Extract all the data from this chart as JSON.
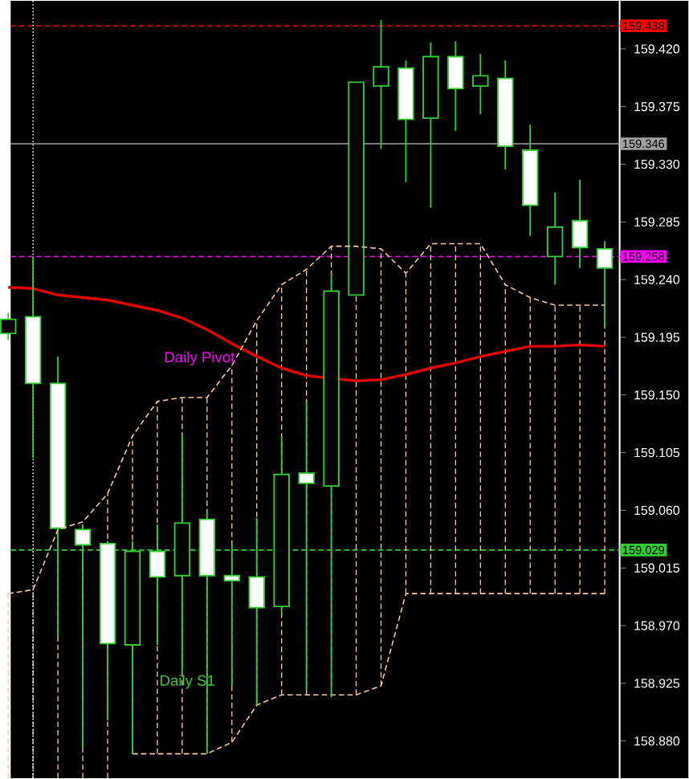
{
  "chart_data": {
    "type": "candlestick",
    "categories": [
      null,
      null,
      null,
      null,
      null,
      null,
      null,
      null,
      null,
      null,
      null,
      null,
      null,
      null,
      null,
      null,
      null,
      null,
      null,
      null,
      null,
      null,
      null,
      null,
      null
    ],
    "series": [
      {
        "type": "line",
        "color": "#f5c8a0",
        "line_style": "dashed",
        "values": [
          158.995,
          158.998,
          159.045,
          159.051,
          159.073,
          159.118,
          159.145,
          159.148,
          159.148,
          159.173,
          159.208,
          159.236,
          159.248,
          159.266,
          159.266,
          159.264,
          159.245,
          159.268,
          159.268,
          159.268,
          159.236,
          159.226,
          159.22,
          159.22,
          159.22
        ],
        "errors": [
          [
            158.851,
            158.995
          ],
          [
            158.851,
            158.998
          ],
          [
            158.851,
            159.045
          ],
          [
            158.851,
            159.051
          ],
          [
            158.851,
            159.073
          ],
          [
            158.87,
            159.118
          ],
          [
            158.87,
            159.145
          ],
          [
            158.87,
            159.148
          ],
          [
            158.87,
            159.148
          ],
          [
            158.879,
            159.173
          ],
          [
            158.908,
            159.208
          ],
          [
            158.916,
            159.236
          ],
          [
            158.916,
            159.248
          ],
          [
            158.916,
            159.266
          ],
          [
            158.916,
            159.266
          ],
          [
            158.923,
            159.264
          ],
          [
            158.995,
            159.245
          ],
          [
            158.995,
            159.268
          ],
          [
            158.995,
            159.268
          ],
          [
            158.995,
            159.268
          ],
          [
            158.995,
            159.236
          ],
          [
            158.995,
            159.226
          ],
          [
            158.995,
            159.22
          ],
          [
            158.995,
            159.22
          ],
          [
            158.995,
            159.22
          ]
        ]
      },
      {
        "type": "line",
        "color": "#f5c8a0",
        "line_style": "dashed",
        "values": [
          null,
          null,
          null,
          null,
          null,
          158.87,
          158.87,
          158.87,
          158.87,
          158.879,
          158.908,
          158.916,
          158.916,
          158.916,
          158.916,
          158.923,
          158.995,
          158.995,
          158.995,
          158.995,
          158.995,
          158.995,
          158.995,
          158.995,
          158.995
        ]
      },
      {
        "type": "line",
        "color": "#e00000",
        "line_style": "solid",
        "values": [
          159.234,
          159.233,
          159.228,
          159.226,
          159.224,
          159.22,
          159.216,
          159.21,
          159.201,
          159.19,
          159.18,
          159.171,
          159.165,
          null,
          159.161,
          159.162,
          159.166,
          159.171,
          159.175,
          159.18,
          159.184,
          159.188,
          159.188,
          159.189,
          159.188
        ]
      },
      {
        "color": "#32cd32",
        "ohlc": [
          [
            159.198,
            159.214,
            159.193,
            159.209
          ],
          [
            159.211,
            159.258,
            159.101,
            159.159
          ],
          [
            159.159,
            159.18,
            158.961,
            159.046
          ],
          [
            159.045,
            159.049,
            158.874,
            159.033
          ],
          [
            159.034,
            159.036,
            158.896,
            158.956
          ],
          [
            158.955,
            159.036,
            158.87,
            159.028
          ],
          [
            159.028,
            159.049,
            158.955,
            159.008
          ],
          [
            159.009,
            159.118,
            158.933,
            159.05
          ],
          [
            159.053,
            159.058,
            158.87,
            159.009
          ],
          [
            159.009,
            159.033,
            158.923,
            159.005
          ],
          [
            159.008,
            159.054,
            158.908,
            158.984
          ],
          [
            158.985,
            159.118,
            158.979,
            159.088
          ],
          [
            159.089,
            159.145,
            158.92,
            159.081
          ],
          [
            159.079,
            159.246,
            158.914,
            159.231
          ],
          [
            159.228,
            159.394,
            159.228,
            159.394
          ],
          [
            159.391,
            159.4425,
            159.342,
            159.406
          ],
          [
            159.405,
            159.411,
            159.316,
            159.365
          ],
          [
            159.366,
            159.425,
            159.296,
            159.414
          ],
          [
            159.414,
            159.426,
            159.356,
            159.389
          ],
          [
            159.391,
            159.416,
            159.369,
            159.399
          ],
          [
            159.397,
            159.411,
            159.326,
            159.344
          ],
          [
            159.341,
            159.361,
            159.274,
            159.298
          ],
          [
            159.258,
            159.308,
            159.236,
            159.281
          ],
          [
            159.286,
            159.318,
            159.249,
            159.265
          ],
          [
            159.264,
            159.27,
            159.203,
            159.249
          ]
        ]
      }
    ],
    "ylim": [
      158.851,
      159.4575
    ],
    "yticks": [
      {
        "value": 158.88,
        "label": "158.880"
      },
      {
        "value": 158.925,
        "label": "158.925"
      },
      {
        "value": 158.97,
        "label": "158.970"
      },
      {
        "value": 159.015,
        "label": "159.015"
      },
      {
        "value": 159.06,
        "label": "159.060"
      },
      {
        "value": 159.105,
        "label": "159.105"
      },
      {
        "value": 159.15,
        "label": "159.150"
      },
      {
        "value": 159.195,
        "label": "159.195"
      },
      {
        "value": 159.24,
        "label": "159.240"
      },
      {
        "value": 159.285,
        "label": "159.285"
      },
      {
        "value": 159.33,
        "label": "159.330"
      },
      {
        "value": 159.375,
        "label": "159.375"
      },
      {
        "value": 159.42,
        "label": "159.420"
      }
    ],
    "tick_labels": "y",
    "grid": false,
    "ref_lines": [
      {
        "axis": "y",
        "value": 159.438,
        "label": "159.438",
        "color": "#ff0000",
        "line_style": "dashed"
      },
      {
        "axis": "y",
        "value": 159.346,
        "label": "159.346",
        "color": "#a0a0a0",
        "line_style": "solid"
      },
      {
        "axis": "y",
        "value": 159.258,
        "label": "159.258",
        "color": "#ff00ff",
        "line_style": "dashed"
      },
      {
        "axis": "y",
        "value": 159.029,
        "label": "159.029",
        "color": "#32cd32",
        "line_style": "dashed"
      }
    ],
    "annotations": [
      "Daily Pivot",
      "Daily S1"
    ]
  }
}
